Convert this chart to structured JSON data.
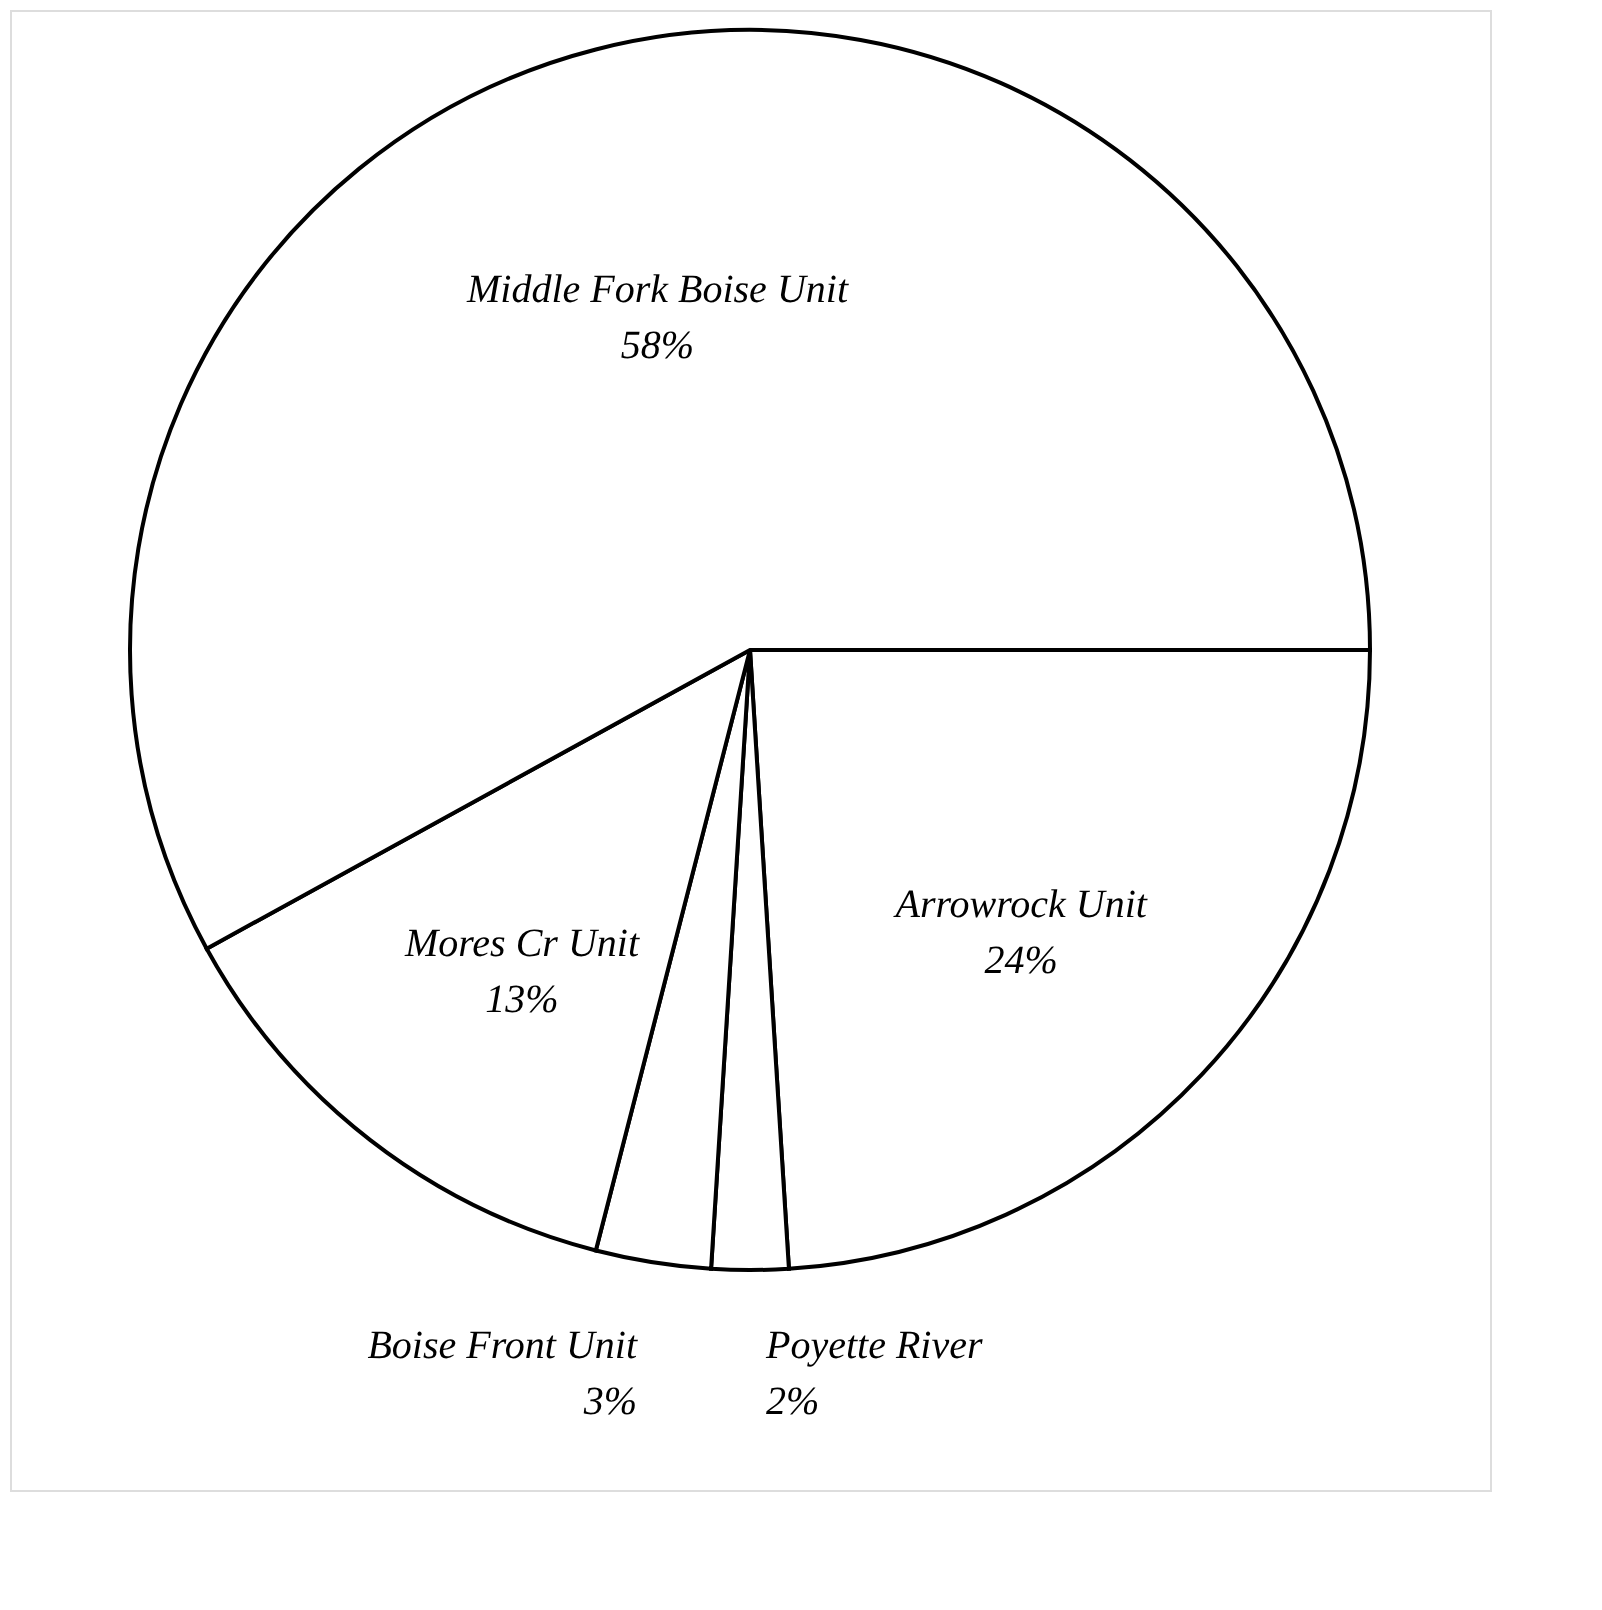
{
  "chart_data": {
    "type": "pie",
    "categories": [
      "Arrowrock Unit",
      "Poyette River",
      "Boise Front Unit",
      "Mores Cr Unit",
      "Middle Fork Boise Unit"
    ],
    "values": [
      24,
      2,
      3,
      13,
      58
    ],
    "value_labels": [
      "24%",
      "2%",
      "3%",
      "13%",
      "58%"
    ],
    "colors": [
      "#ffffff",
      "#ffffff",
      "#ffffff",
      "#ffffff",
      "#ffffff"
    ]
  }
}
